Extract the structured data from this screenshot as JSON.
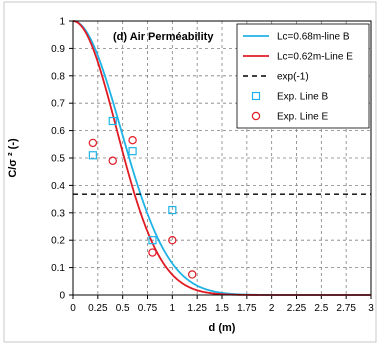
{
  "chart_data": {
    "type": "line",
    "title": "(d) Air Perméability",
    "xlabel": "d (m)",
    "ylabel": "C/σ ² (-)",
    "xlim": [
      0,
      3
    ],
    "ylim": [
      0,
      1
    ],
    "x_ticks": [
      "0",
      "0.25",
      "0.5",
      "0.75",
      "1",
      "1.25",
      "1.5",
      "1.75",
      "2",
      "2.25",
      "2.5",
      "2.75",
      "3"
    ],
    "y_ticks": [
      "0",
      "0.1",
      "0.2",
      "0.3",
      "0.4",
      "0.5",
      "0.6",
      "0.7",
      "0.8",
      "0.9",
      "1"
    ],
    "grid": "dashed",
    "legend_position": "top-right",
    "series": [
      {
        "name": "Lc=0.68m-line B",
        "kind": "gaussian",
        "lc": 0.68,
        "color": "#1fb3e6",
        "style": "solid"
      },
      {
        "name": "Lc=0.62m-Line E",
        "kind": "gaussian",
        "lc": 0.62,
        "color": "#e01b24",
        "style": "solid"
      },
      {
        "name": "exp(-1)",
        "kind": "horizontal",
        "y": 0.368,
        "color": "#000000",
        "style": "dashed"
      },
      {
        "name": "Exp. Line B",
        "kind": "points",
        "marker": "square",
        "color": "#1fb3e6",
        "points": [
          [
            0.2,
            0.51
          ],
          [
            0.4,
            0.635
          ],
          [
            0.6,
            0.525
          ],
          [
            0.8,
            0.2
          ],
          [
            1.0,
            0.31
          ]
        ]
      },
      {
        "name": "Exp. Line E",
        "kind": "points",
        "marker": "circle",
        "color": "#e01b24",
        "points": [
          [
            0.2,
            0.555
          ],
          [
            0.4,
            0.49
          ],
          [
            0.6,
            0.565
          ],
          [
            0.8,
            0.155
          ],
          [
            1.0,
            0.2
          ],
          [
            1.2,
            0.075
          ]
        ]
      }
    ]
  }
}
